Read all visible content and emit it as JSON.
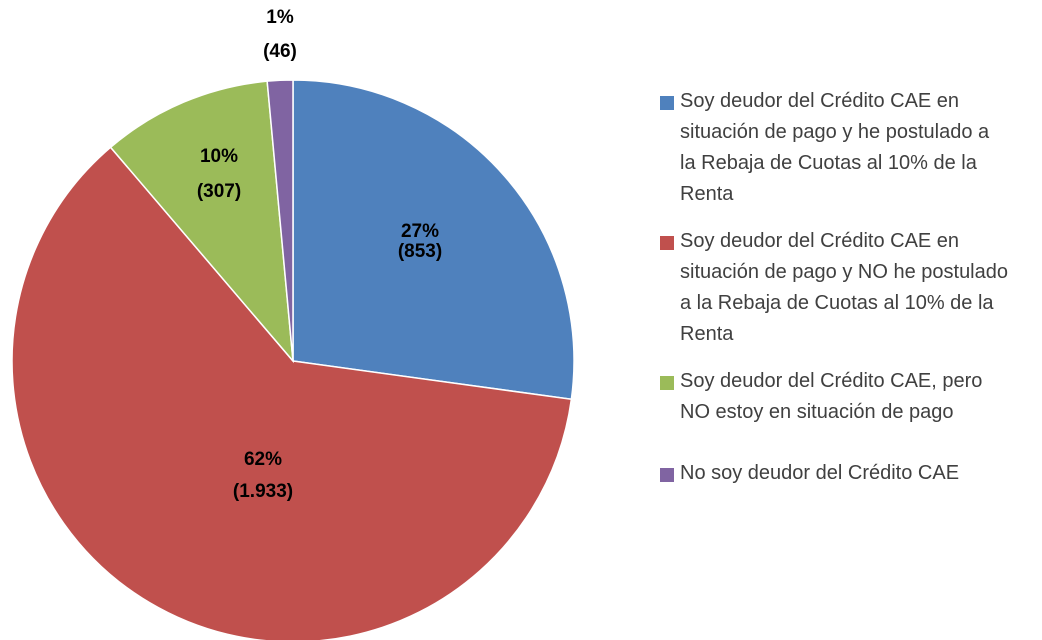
{
  "chart_data": {
    "type": "pie",
    "categories": [
      "Soy deudor del Crédito CAE en situación de pago y he postulado a la Rebaja de Cuotas al 10% de la Renta",
      "Soy deudor del Crédito CAE en situación de pago y NO he postulado a la Rebaja de Cuotas al 10% de la Renta",
      "Soy deudor del Crédito CAE, pero NO estoy en situación de pago",
      "No soy deudor del Crédito CAE"
    ],
    "values": [
      853,
      1933,
      307,
      46
    ],
    "value_labels": [
      "(853)",
      "(1.933)",
      "(307)",
      "(46)"
    ],
    "percent_labels": [
      "27%",
      "62%",
      "10%",
      "1%"
    ],
    "colors": [
      "#4f81bd",
      "#c0504d",
      "#9bbb59",
      "#8064a2"
    ],
    "legend": "right"
  }
}
